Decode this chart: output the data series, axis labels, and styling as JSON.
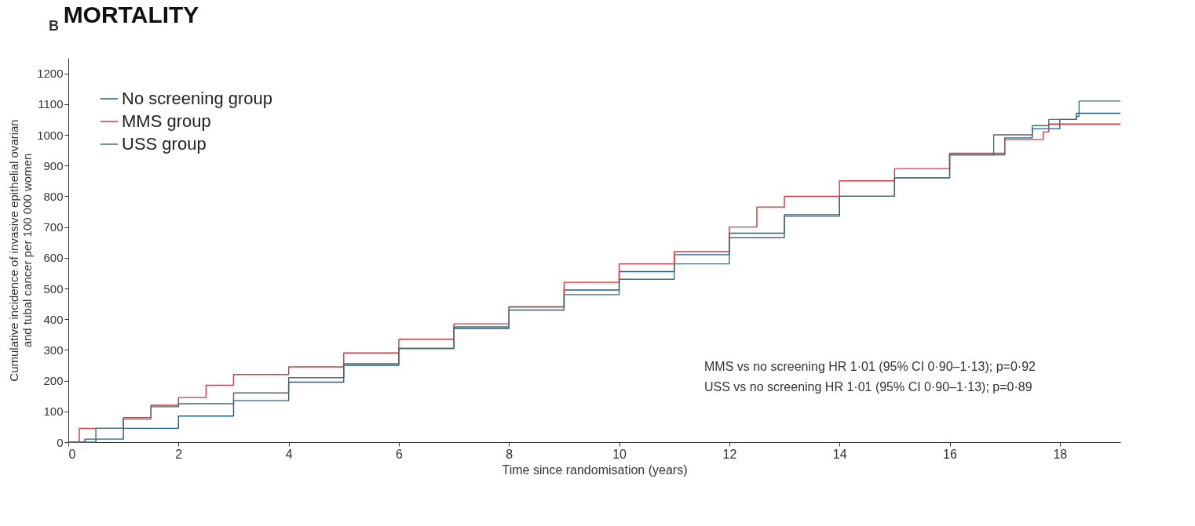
{
  "chart_data": {
    "type": "step",
    "title": "MORTALITY",
    "xlabel": "Time since randomisation (years)",
    "ylabel": "Cumulative incidence of invasive epithelial ovarian\nand tubal cancer per 100 000 women",
    "annotations": [
      "B",
      "MMS vs no screening HR 1·01 (95% CI 0·90–1·13); p=0·92",
      "USS vs no screening HR 1·01 (95% CI 0·90–1·13); p=0·89"
    ],
    "xlim": [
      0,
      19.1
    ],
    "xticks": [
      0,
      2,
      4,
      6,
      8,
      10,
      12,
      14,
      16,
      18
    ],
    "ylim": [
      0,
      1250
    ],
    "yticks": [
      0,
      100,
      200,
      300,
      400,
      500,
      600,
      700,
      800,
      900,
      1000,
      1100,
      1200
    ],
    "grid": false,
    "legend": "top left",
    "line_style": "solid",
    "series": [
      {
        "name": "No screening group",
        "color": "#1f5f8b",
        "x": [
          0,
          0.3,
          1,
          2,
          3,
          4,
          5,
          6,
          7,
          8,
          9,
          10,
          11,
          12,
          13,
          14,
          15,
          16,
          17,
          17.5,
          18,
          18.3,
          19.1
        ],
        "values": [
          0,
          10,
          45,
          85,
          135,
          195,
          250,
          305,
          370,
          430,
          495,
          555,
          610,
          680,
          740,
          800,
          860,
          935,
          990,
          1020,
          1050,
          1070,
          1070
        ]
      },
      {
        "name": "MMS group",
        "color": "#e0303c",
        "x": [
          0,
          0.2,
          1,
          1.5,
          2,
          2.5,
          3,
          4,
          5,
          6,
          7,
          8,
          9,
          10,
          11,
          12,
          12.5,
          13,
          14,
          15,
          16,
          17,
          17.7,
          17.8,
          19.1
        ],
        "values": [
          0,
          45,
          80,
          120,
          145,
          185,
          220,
          245,
          290,
          335,
          385,
          440,
          520,
          580,
          620,
          700,
          765,
          800,
          850,
          890,
          940,
          985,
          1010,
          1035,
          1035
        ]
      },
      {
        "name": "USS group",
        "color": "#4a6b6b",
        "x": [
          0,
          0.5,
          1,
          1.5,
          2,
          3,
          4,
          5,
          6,
          7,
          8,
          9,
          10,
          11,
          12,
          13,
          14,
          15,
          16,
          16.8,
          17.5,
          17.8,
          18.3,
          18.35,
          19.1
        ],
        "values": [
          0,
          45,
          75,
          115,
          125,
          160,
          210,
          255,
          305,
          375,
          440,
          480,
          530,
          580,
          665,
          735,
          800,
          860,
          935,
          1000,
          1030,
          1050,
          1060,
          1110,
          1110
        ]
      }
    ]
  }
}
